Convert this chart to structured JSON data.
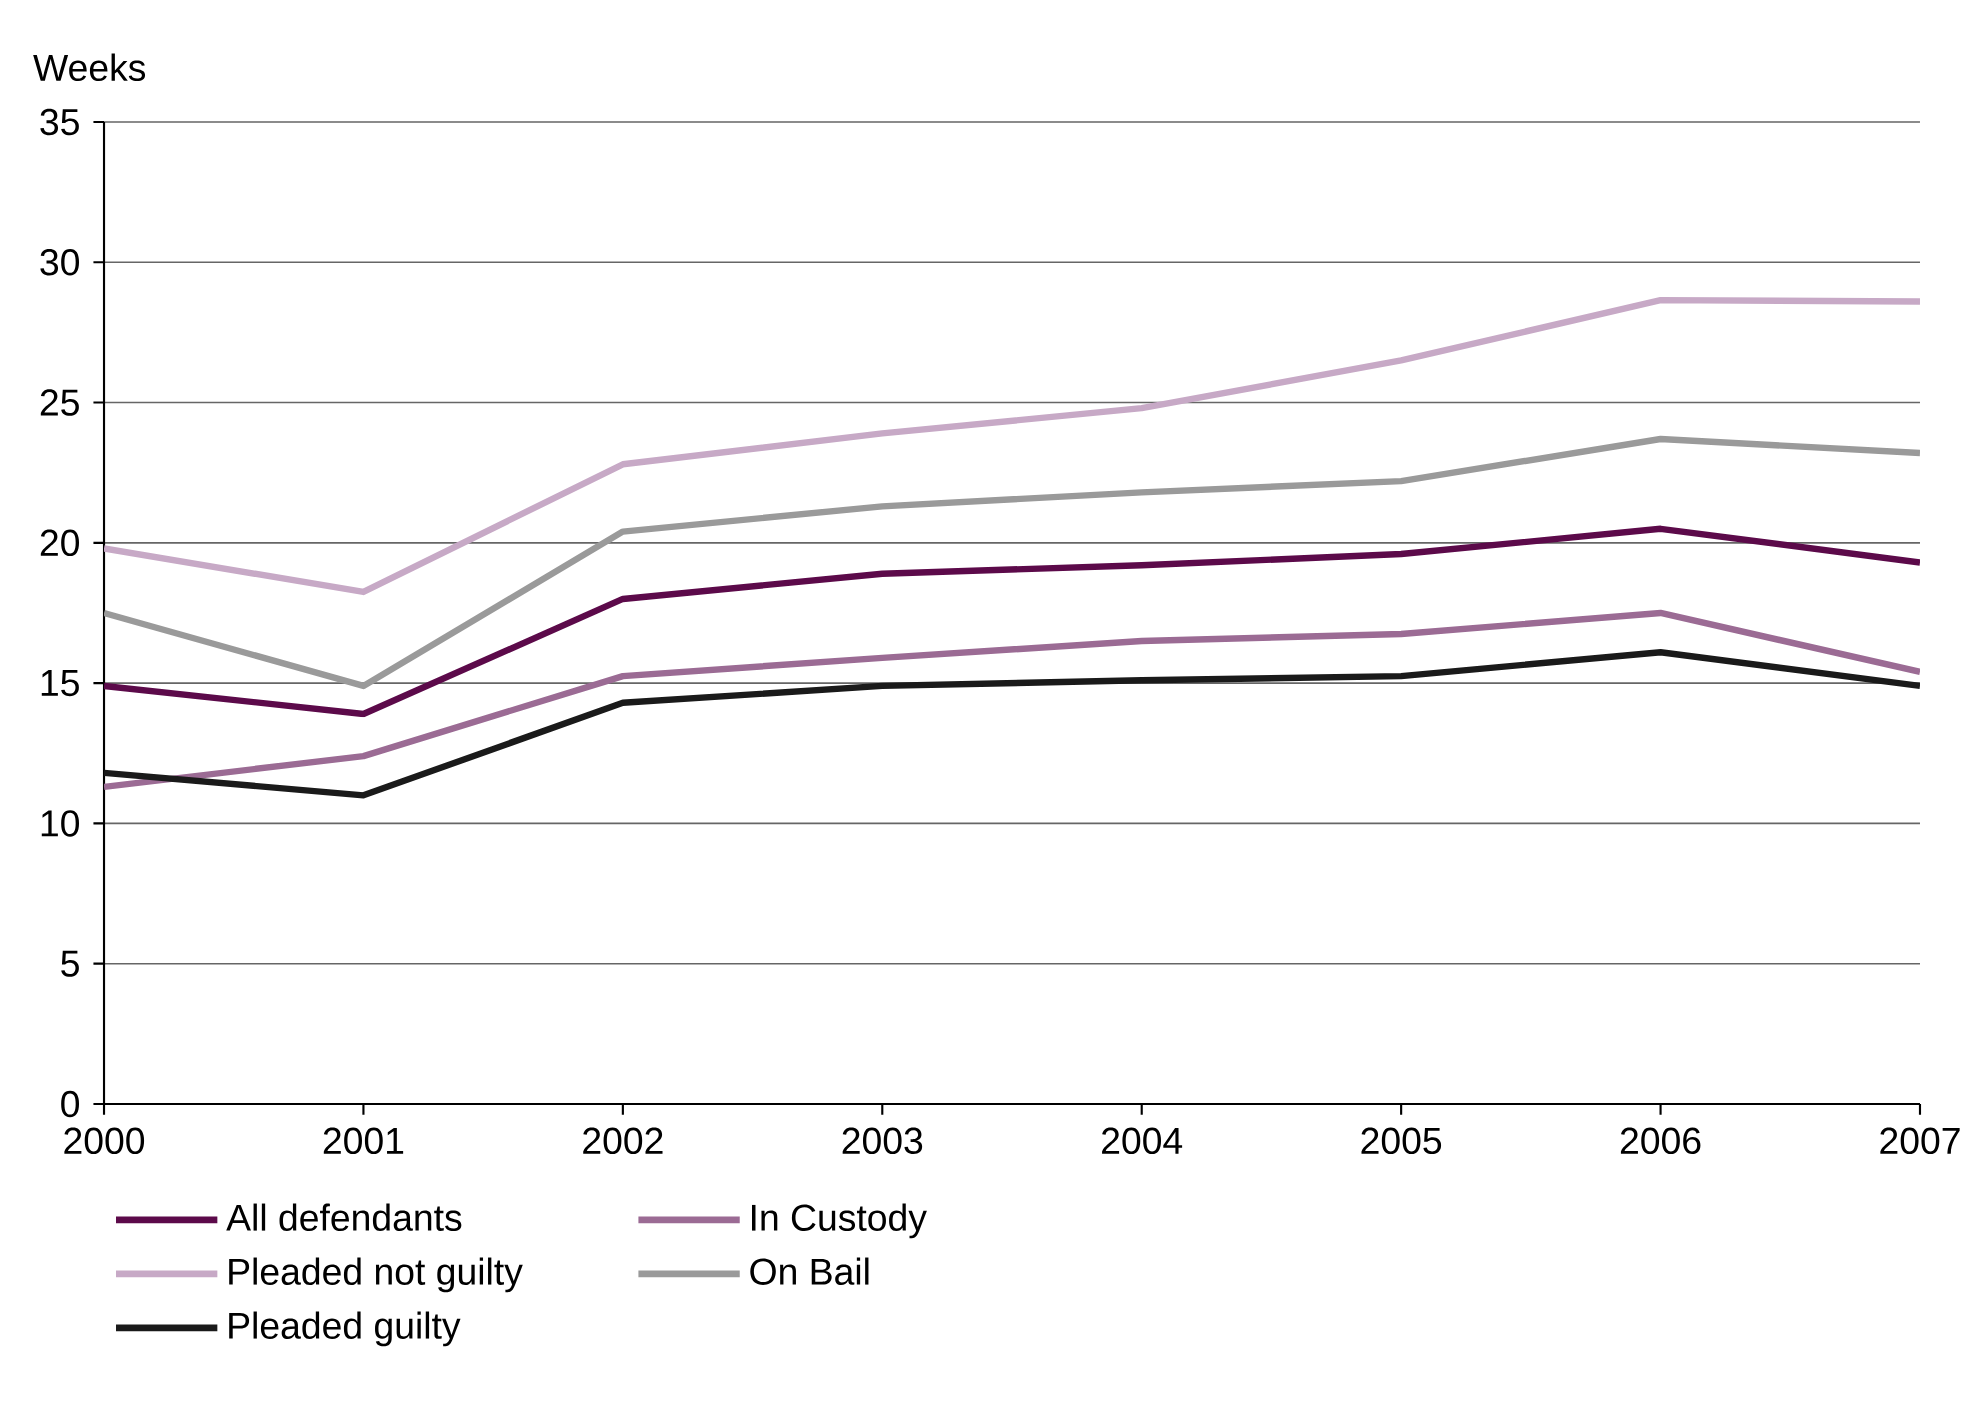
{
  "chart_data": {
    "type": "line",
    "ylabel": "Weeks",
    "x": [
      2000,
      2001,
      2002,
      2003,
      2004,
      2005,
      2006,
      2007
    ],
    "xlim": [
      2000,
      2007
    ],
    "xticks": [
      2000,
      2001,
      2002,
      2003,
      2004,
      2005,
      2006,
      2007
    ],
    "ylim": [
      0,
      35
    ],
    "yticks": [
      0,
      5,
      10,
      15,
      20,
      25,
      30,
      35
    ],
    "grid": "y",
    "legend": "bottom",
    "marker": "none",
    "line_style": "solid",
    "series": [
      {
        "name": "All defendants",
        "color": "#5c0a4a",
        "values": [
          14.9,
          13.9,
          18.0,
          18.9,
          19.2,
          19.6,
          20.5,
          19.3
        ]
      },
      {
        "name": "In Custody",
        "color": "#9b6b94",
        "values": [
          11.3,
          12.4,
          15.25,
          15.9,
          16.5,
          16.75,
          17.5,
          15.4
        ]
      },
      {
        "name": "Pleaded not guilty",
        "color": "#c7a9c6",
        "values": [
          19.8,
          18.25,
          22.8,
          23.9,
          24.8,
          26.5,
          28.65,
          28.6
        ]
      },
      {
        "name": "On Bail",
        "color": "#9a9a9a",
        "values": [
          17.5,
          14.9,
          20.4,
          21.3,
          21.8,
          22.2,
          23.7,
          23.2
        ]
      },
      {
        "name": "Pleaded guilty",
        "color": "#1a1a1a",
        "values": [
          11.8,
          11.0,
          14.3,
          14.9,
          15.1,
          15.25,
          16.1,
          14.9
        ]
      }
    ]
  }
}
